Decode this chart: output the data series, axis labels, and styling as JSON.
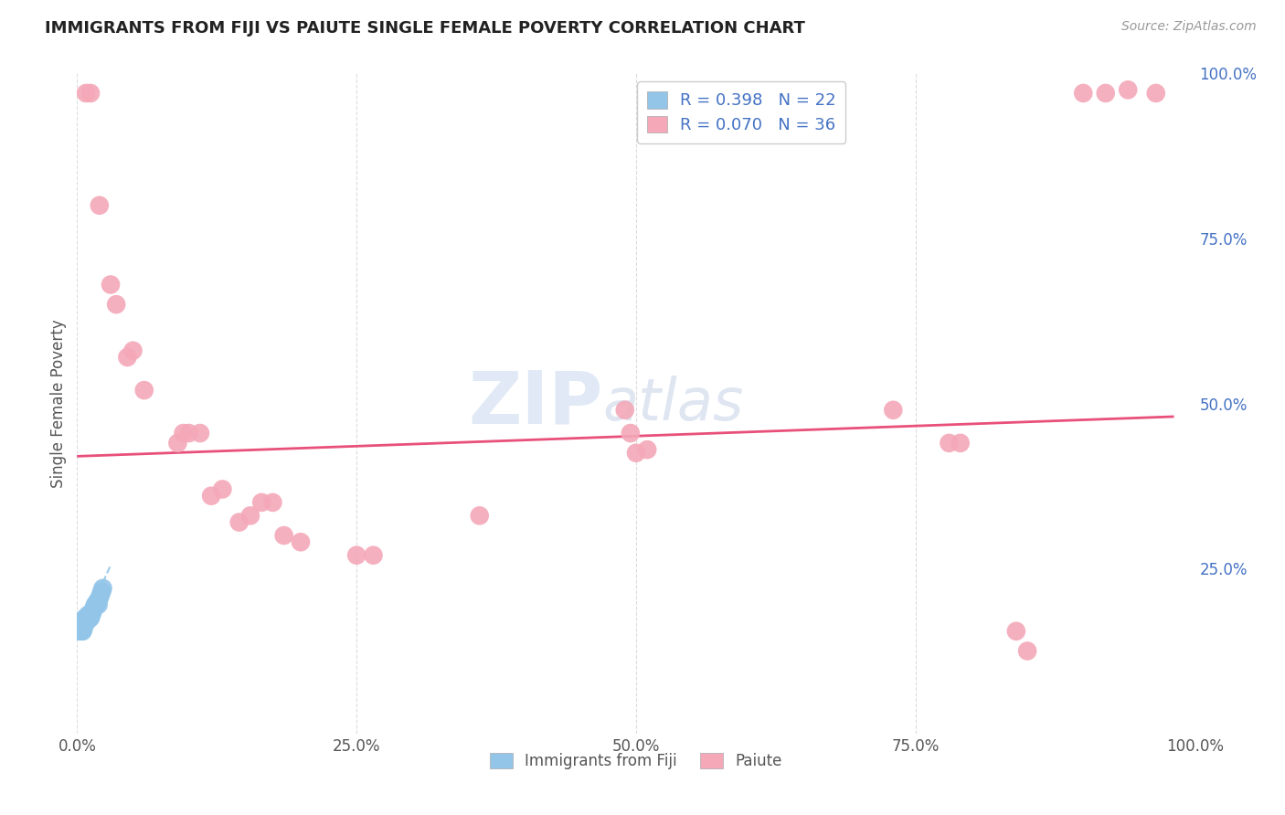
{
  "title": "IMMIGRANTS FROM FIJI VS PAIUTE SINGLE FEMALE POVERTY CORRELATION CHART",
  "source": "Source: ZipAtlas.com",
  "ylabel": "Single Female Poverty",
  "xlim": [
    0.0,
    1.0
  ],
  "ylim": [
    0.0,
    1.0
  ],
  "xtick_labels": [
    "0.0%",
    "25.0%",
    "50.0%",
    "75.0%",
    "100.0%"
  ],
  "xtick_positions": [
    0.0,
    0.25,
    0.5,
    0.75,
    1.0
  ],
  "ytick_labels_right": [
    "100.0%",
    "75.0%",
    "50.0%",
    "25.0%"
  ],
  "ytick_positions_right": [
    1.0,
    0.75,
    0.5,
    0.25
  ],
  "fiji_color": "#92C5E8",
  "paiute_color": "#F4A8B8",
  "fiji_R": 0.398,
  "fiji_N": 22,
  "paiute_R": 0.07,
  "paiute_N": 36,
  "fiji_points": [
    [
      0.002,
      0.155
    ],
    [
      0.003,
      0.16
    ],
    [
      0.004,
      0.155
    ],
    [
      0.005,
      0.155
    ],
    [
      0.006,
      0.16
    ],
    [
      0.007,
      0.175
    ],
    [
      0.008,
      0.175
    ],
    [
      0.009,
      0.17
    ],
    [
      0.01,
      0.18
    ],
    [
      0.011,
      0.175
    ],
    [
      0.012,
      0.175
    ],
    [
      0.013,
      0.18
    ],
    [
      0.014,
      0.185
    ],
    [
      0.015,
      0.19
    ],
    [
      0.016,
      0.195
    ],
    [
      0.017,
      0.195
    ],
    [
      0.018,
      0.2
    ],
    [
      0.019,
      0.195
    ],
    [
      0.02,
      0.205
    ],
    [
      0.021,
      0.21
    ],
    [
      0.022,
      0.215
    ],
    [
      0.023,
      0.22
    ]
  ],
  "paiute_points": [
    [
      0.008,
      0.97
    ],
    [
      0.012,
      0.97
    ],
    [
      0.02,
      0.8
    ],
    [
      0.03,
      0.68
    ],
    [
      0.035,
      0.65
    ],
    [
      0.045,
      0.57
    ],
    [
      0.05,
      0.58
    ],
    [
      0.06,
      0.52
    ],
    [
      0.09,
      0.44
    ],
    [
      0.095,
      0.455
    ],
    [
      0.1,
      0.455
    ],
    [
      0.11,
      0.455
    ],
    [
      0.12,
      0.36
    ],
    [
      0.13,
      0.37
    ],
    [
      0.145,
      0.32
    ],
    [
      0.155,
      0.33
    ],
    [
      0.165,
      0.35
    ],
    [
      0.175,
      0.35
    ],
    [
      0.185,
      0.3
    ],
    [
      0.2,
      0.29
    ],
    [
      0.25,
      0.27
    ],
    [
      0.265,
      0.27
    ],
    [
      0.36,
      0.33
    ],
    [
      0.49,
      0.49
    ],
    [
      0.495,
      0.455
    ],
    [
      0.5,
      0.425
    ],
    [
      0.51,
      0.43
    ],
    [
      0.73,
      0.49
    ],
    [
      0.78,
      0.44
    ],
    [
      0.79,
      0.44
    ],
    [
      0.84,
      0.155
    ],
    [
      0.85,
      0.125
    ],
    [
      0.9,
      0.97
    ],
    [
      0.92,
      0.97
    ],
    [
      0.94,
      0.975
    ],
    [
      0.965,
      0.97
    ]
  ],
  "fiji_trendline": [
    0.001,
    0.145,
    0.03,
    0.255
  ],
  "paiute_trendline": [
    0.001,
    0.42,
    0.98,
    0.48
  ],
  "watermark_zip": "ZIP",
  "watermark_atlas": "atlas",
  "background_color": "#FFFFFF",
  "grid_color": "#DCDCDC",
  "title_color": "#222222",
  "right_tick_color": "#4472C4",
  "legend_color": "#4472C4"
}
